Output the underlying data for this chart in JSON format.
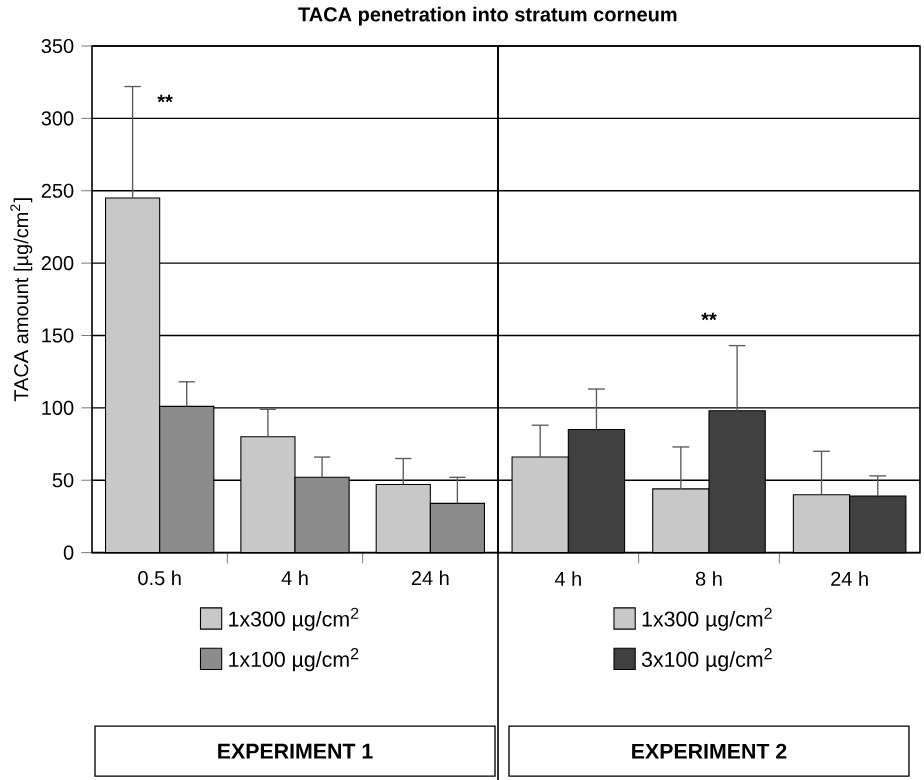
{
  "chart_data": [
    {
      "type": "bar",
      "title": "TACA penetration into stratum corneum",
      "ylabel": "TACA amount [µg/cm$^{2}$]",
      "categories": [
        "0.5 h",
        "4 h",
        "24 h"
      ],
      "series": [
        {
          "name": "1x300 µg/cm$^{2}$",
          "color": "#c8c8c8",
          "values": [
            245,
            80,
            47
          ],
          "errors": [
            [
              245,
              322
            ],
            [
              80,
              99
            ],
            [
              47,
              65
            ]
          ]
        },
        {
          "name": "1x100 µg/cm$^{2}$",
          "color": "#8c8c8c",
          "values": [
            101,
            52,
            34
          ],
          "errors": [
            [
              101,
              118
            ],
            [
              52,
              66
            ],
            [
              34,
              52
            ]
          ]
        }
      ],
      "ylim": [
        0,
        350
      ],
      "yticks": [
        0,
        50,
        100,
        150,
        200,
        250,
        300,
        350
      ],
      "grid": "y",
      "legend": "bottom",
      "annotations": [
        "**",
        "EXPERIMENT 1"
      ]
    },
    {
      "type": "bar",
      "categories": [
        "4 h",
        "8 h",
        "24 h"
      ],
      "series": [
        {
          "name": "1x300 µg/cm$^{2}$",
          "color": "#c8c8c8",
          "values": [
            66,
            44,
            40
          ],
          "errors": [
            [
              66,
              88
            ],
            [
              44,
              73
            ],
            [
              40,
              70
            ]
          ]
        },
        {
          "name": "3x100 µg/cm$^{2}$",
          "color": "#404040",
          "values": [
            85,
            98,
            39
          ],
          "errors": [
            [
              85,
              113
            ],
            [
              98,
              143
            ],
            [
              39,
              53
            ]
          ]
        }
      ],
      "ylim": [
        0,
        350
      ],
      "yticks": [
        0,
        50,
        100,
        150,
        200,
        250,
        300,
        350
      ],
      "grid": "y",
      "legend": "bottom",
      "tick_labels": "x",
      "annotations": [
        "**",
        "EXPERIMENT 2"
      ]
    }
  ]
}
